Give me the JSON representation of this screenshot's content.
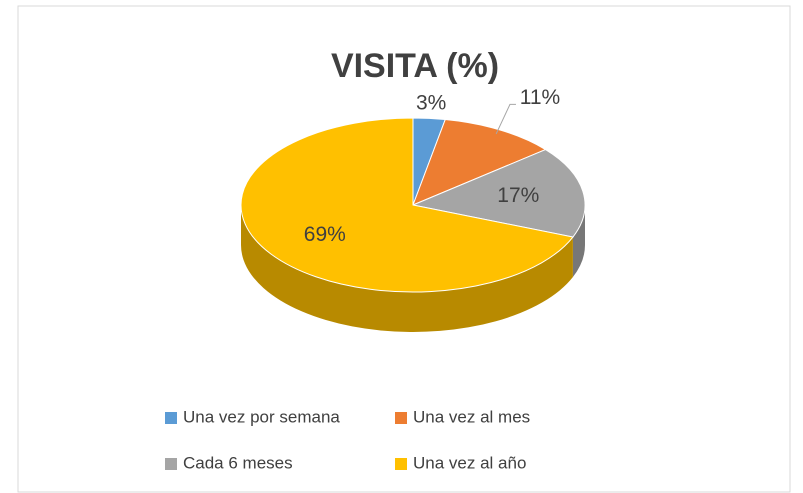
{
  "chart_data": {
    "type": "pie",
    "title": "VISITA (%)",
    "categories": [
      "Una vez por semana",
      "Una vez al mes",
      "Cada 6 meses",
      "Una vez al año"
    ],
    "values": [
      3,
      11,
      17,
      69
    ],
    "value_labels": [
      "3%",
      "11%",
      "17%",
      "69%"
    ],
    "colors": [
      "#5b9bd5",
      "#ed7d31",
      "#a5a5a5",
      "#ffc000"
    ],
    "legend": "bottom"
  }
}
